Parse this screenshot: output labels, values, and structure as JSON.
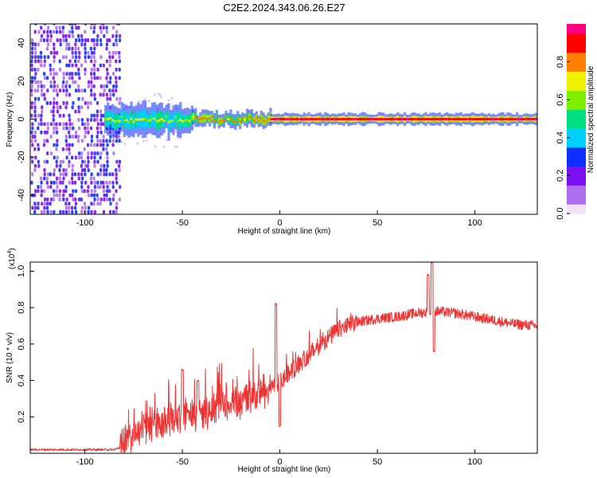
{
  "title": "C2E2.2024.343.06.26.E27",
  "colorbar": {
    "label": "Normalized spectral amplitude",
    "ticks": [
      "0.0",
      "0.2",
      "0.4",
      "0.6",
      "0.8"
    ],
    "tick_values": [
      0.0,
      0.2,
      0.4,
      0.6,
      0.8
    ],
    "range": [
      0,
      1
    ],
    "colors": [
      "#f2e2fa",
      "#b06ef0",
      "#7b10f0",
      "#1030ff",
      "#00d0ff",
      "#00e080",
      "#80f000",
      "#f0f000",
      "#ff8000",
      "#ff0000",
      "#ff0080"
    ]
  },
  "chart_data": [
    {
      "type": "heatmap",
      "title": "C2E2.2024.343.06.26.E27",
      "xlabel": "Height of straight line (km)",
      "ylabel": "Frequency (Hz)",
      "xlim": [
        -128,
        132
      ],
      "ylim": [
        -50,
        50
      ],
      "x_ticks": [
        -100,
        -50,
        0,
        50,
        100
      ],
      "x_tick_labels": [
        "-100",
        "-50",
        "0",
        "50",
        "100"
      ],
      "y_ticks": [
        -40,
        -20,
        0,
        20,
        40
      ],
      "y_tick_labels": [
        "-40",
        "-20",
        "0",
        "20",
        "40"
      ],
      "noise_region_x": [
        -128,
        -82
      ],
      "signal_band": {
        "center_freq_hz": 0,
        "segments": [
          {
            "x_start": -90,
            "x_end": -45,
            "half_width_hz": 4,
            "peak_amplitude": 0.7
          },
          {
            "x_start": -45,
            "x_end": -5,
            "half_width_hz": 2,
            "peak_amplitude": 0.85
          },
          {
            "x_start": -5,
            "x_end": 132,
            "half_width_hz": 1.5,
            "peak_amplitude": 1.0
          }
        ]
      }
    },
    {
      "type": "line",
      "xlabel": "Height of straight line (km)",
      "ylabel": "SNR (10 * v/v)",
      "scale_label": "(x10",
      "scale_exponent": "4",
      "xlim": [
        -128,
        132
      ],
      "ylim": [
        0,
        1.05
      ],
      "x_ticks": [
        -100,
        -50,
        0,
        50,
        100
      ],
      "x_tick_labels": [
        "-100",
        "-50",
        "0",
        "50",
        "100"
      ],
      "y_ticks": [
        0.2,
        0.4,
        0.6,
        0.8,
        1.0
      ],
      "y_tick_labels": [
        "0.2",
        "0.4",
        "0.6",
        "0.8",
        "1.0"
      ],
      "color": "#ee3333",
      "series": [
        {
          "name": "SNR",
          "trend": {
            "x": [
              -128,
              -100,
              -85,
              -80,
              -75,
              -70,
              -60,
              -50,
              -40,
              -30,
              -20,
              -10,
              -5,
              0,
              10,
              20,
              30,
              40,
              50,
              60,
              70,
              80,
              90,
              100,
              110,
              120,
              132
            ],
            "y": [
              0.02,
              0.02,
              0.02,
              0.04,
              0.1,
              0.14,
              0.17,
              0.2,
              0.22,
              0.26,
              0.29,
              0.33,
              0.36,
              0.39,
              0.49,
              0.59,
              0.68,
              0.72,
              0.74,
              0.75,
              0.77,
              0.78,
              0.77,
              0.75,
              0.73,
              0.71,
              0.7
            ]
          },
          "peaks": [
            {
              "x": -50,
              "y": 0.46
            },
            {
              "x": -42,
              "y": 0.4
            },
            {
              "x": -2,
              "y": 0.82
            },
            {
              "x": 0,
              "y": 0.15
            },
            {
              "x": 76,
              "y": 0.98
            },
            {
              "x": 78,
              "y": 1.05
            },
            {
              "x": 79,
              "y": 0.56
            }
          ]
        }
      ]
    }
  ]
}
